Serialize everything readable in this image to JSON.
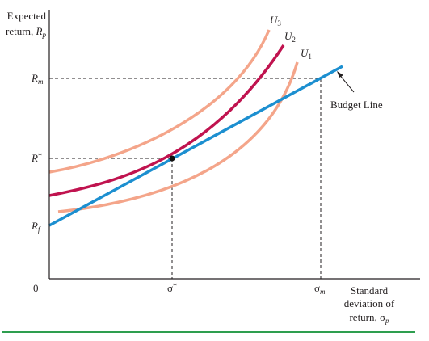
{
  "axes": {
    "y_title_line1": "Expected",
    "y_title_line2_prefix": "return, ",
    "y_title_var": "R",
    "y_title_sub": "p",
    "x_title_line1": "Standard",
    "x_title_line2": "deviation of",
    "x_title_line3_prefix": "return, ",
    "x_title_var": "σ",
    "x_title_sub": "p",
    "origin_label": "0"
  },
  "y_ticks": {
    "rm_var": "R",
    "rm_sub": "m",
    "rstar_var": "R",
    "rstar_sup": "*",
    "rf_var": "R",
    "rf_sub": "f"
  },
  "x_ticks": {
    "sigma_star_var": "σ",
    "sigma_star_sup": "*",
    "sigma_m_var": "σ",
    "sigma_m_sub": "m"
  },
  "curves": {
    "u3_var": "U",
    "u3_sub": "3",
    "u2_var": "U",
    "u2_sub": "2",
    "u1_var": "U",
    "u1_sub": "1",
    "budget_label": "Budget Line"
  },
  "colors": {
    "indifference_light": "#f4a58a",
    "indifference_tangent": "#c0134f",
    "budget_line": "#1c8fd0",
    "footer_rule": "#2e9e4f",
    "axis": "#231f20"
  }
}
